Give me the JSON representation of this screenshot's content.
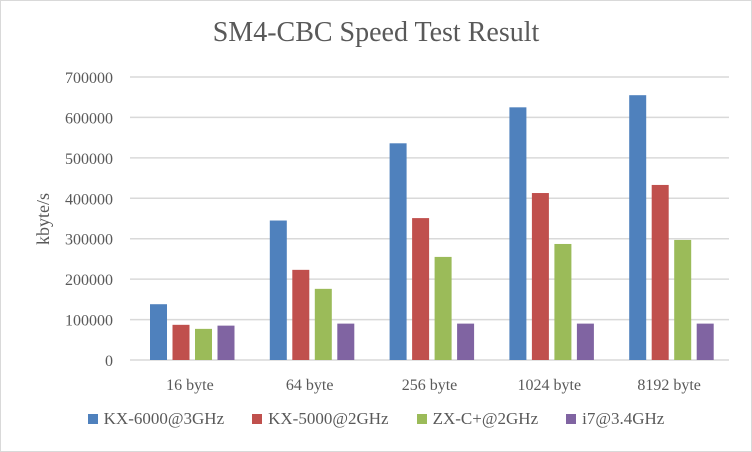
{
  "chart_data": {
    "type": "bar",
    "title": "SM4-CBC Speed Test Result",
    "xlabel": "",
    "ylabel": "kbyte/s",
    "ylim": [
      0,
      700000
    ],
    "yticks": [
      0,
      100000,
      200000,
      300000,
      400000,
      500000,
      600000,
      700000
    ],
    "grid": true,
    "legend": "bottom",
    "categories": [
      "16 byte",
      "64 byte",
      "256 byte",
      "1024 byte",
      "8192 byte"
    ],
    "series": [
      {
        "name": "KX-6000@3GHz",
        "color": "#4f81bd",
        "values": [
          138000,
          345000,
          536000,
          625000,
          655000
        ]
      },
      {
        "name": "KX-5000@2GHz",
        "color": "#c0504d",
        "values": [
          87000,
          223000,
          351000,
          413000,
          433000
        ]
      },
      {
        "name": "ZX-C+@2GHz",
        "color": "#9bbb59",
        "values": [
          77000,
          176000,
          255000,
          287000,
          297000
        ]
      },
      {
        "name": "i7@3.4GHz",
        "color": "#8064a2",
        "values": [
          85000,
          90000,
          90000,
          90000,
          90000
        ]
      }
    ]
  }
}
